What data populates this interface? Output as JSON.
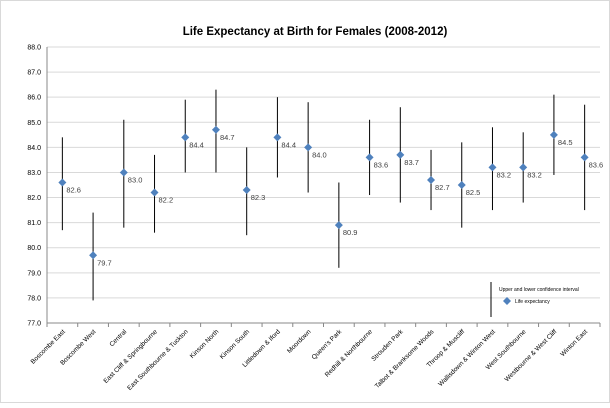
{
  "chart_data": {
    "type": "scatter",
    "title": "Life Expectancy at Birth for Females (2008-2012)",
    "xlabel": "",
    "ylabel": "",
    "ylim": [
      77.0,
      88.0
    ],
    "ytick_step": 1.0,
    "grid": true,
    "legend_position": "bottom-right",
    "categories": [
      "Boscombe East",
      "Boscombe West",
      "Central",
      "East Cliff & Springbourne",
      "East Southbourne & Tuckton",
      "Kinson North",
      "Kinson South",
      "Littledown & Iford",
      "Moordown",
      "Queen's Park",
      "Redhill & Northbourne",
      "Strouden Park",
      "Talbot & Branksome Woods",
      "Throop & Muscliff",
      "Wallisdown & Winton West",
      "West Southbourne",
      "Westbourne & West Cliff",
      "Winton East"
    ],
    "series": [
      {
        "name": "Life expectancy",
        "marker": "diamond",
        "color": "#4f81bd",
        "values": [
          82.6,
          79.7,
          83.0,
          82.2,
          84.4,
          84.7,
          82.3,
          84.4,
          84.0,
          80.9,
          83.6,
          83.7,
          82.7,
          82.5,
          83.2,
          83.2,
          84.5,
          83.6
        ],
        "data_labels": [
          "82.6",
          "79.7",
          "83.0",
          "82.2",
          "84.4",
          "84.7",
          "82.3",
          "84.4",
          "84.0",
          "80.9",
          "83.6",
          "83.7",
          "82.7",
          "82.5",
          "83.2",
          "83.2",
          "84.5",
          "83.6"
        ]
      },
      {
        "name": "Upper and lower confidence interval",
        "type": "errorbar",
        "color": "#000000",
        "lower": [
          80.7,
          77.9,
          80.8,
          80.6,
          83.0,
          83.0,
          80.5,
          82.8,
          82.2,
          79.2,
          82.1,
          81.8,
          81.5,
          80.8,
          81.5,
          81.8,
          82.9,
          81.5
        ],
        "upper": [
          84.4,
          81.4,
          85.1,
          83.7,
          85.9,
          86.3,
          84.0,
          86.0,
          85.8,
          82.6,
          85.1,
          85.6,
          83.9,
          84.2,
          84.8,
          84.6,
          86.1,
          85.7
        ]
      }
    ]
  }
}
